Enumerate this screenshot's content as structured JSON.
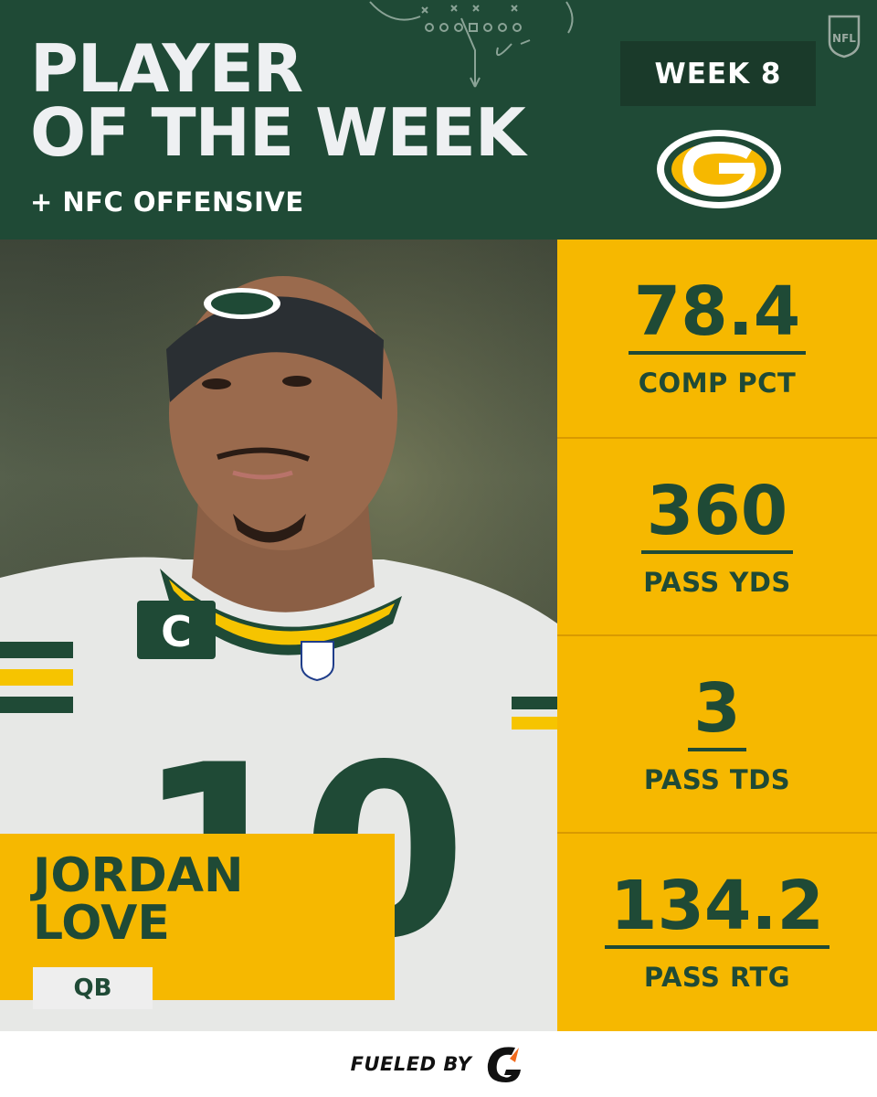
{
  "header": {
    "title_line1": "PLAYER",
    "title_line2": "OF THE WEEK",
    "subtitle": "+ NFC OFFENSIVE",
    "week_label": "WEEK 8",
    "league_logo_text": "NFL",
    "team_logo_letter": "G"
  },
  "player": {
    "first_name": "JORDAN",
    "last_name": "LOVE",
    "position": "QB",
    "jersey_number": "10",
    "captain_patch": "C"
  },
  "stats": [
    {
      "value": "78.4",
      "label": "COMP PCT"
    },
    {
      "value": "360",
      "label": "PASS YDS"
    },
    {
      "value": "3",
      "label": "PASS TDS"
    },
    {
      "value": "134.2",
      "label": "PASS RTG"
    }
  ],
  "footer": {
    "sponsor_text": "FUELED BY",
    "sponsor_logo_letter": "G"
  },
  "colors": {
    "team_green": "#1f4a36",
    "gold": "#f6b800",
    "badge_dark": "#1a3a2a"
  }
}
